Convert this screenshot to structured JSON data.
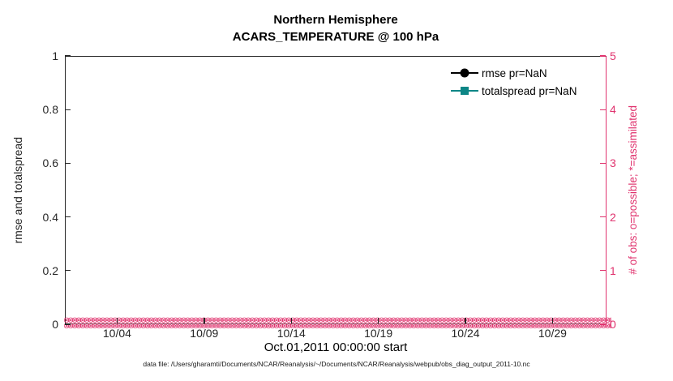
{
  "figure": {
    "title": "Northern Hemisphere",
    "subtitle": "ACARS_TEMPERATURE @ 100 hPa",
    "xlabel": "Oct.01,2011 00:00:00 start",
    "caption": "data file: /Users/gharamti/Documents/NCAR/Reanalysis/~/Documents/NCAR/Reanalysis/webpub/obs_diag_output_2011-10.nc"
  },
  "colors": {
    "obs_axis_pink": "#E0336E",
    "rmse_black": "#000000",
    "totalspread_teal": "#0D8686",
    "axis_ink": "#262626",
    "background": "#FFFFFF"
  },
  "left_axis": {
    "label": "rmse and totalspread",
    "ticks": [
      "0",
      "0.2",
      "0.4",
      "0.6",
      "0.8",
      "1"
    ],
    "range": [
      0,
      1
    ]
  },
  "right_axis": {
    "label": "# of obs: o=possible; *=assimilated",
    "ticks": [
      "0",
      "1",
      "2",
      "3",
      "4",
      "5"
    ],
    "range": [
      0,
      5
    ]
  },
  "x_axis": {
    "ticks": [
      "10/04",
      "10/09",
      "10/14",
      "10/19",
      "10/24",
      "10/29"
    ],
    "tick_days": [
      4,
      9,
      14,
      19,
      24,
      29
    ],
    "range_days": [
      1,
      32.1
    ]
  },
  "legend": [
    {
      "label": "rmse pr=NaN",
      "marker": "circle",
      "color": "#000000"
    },
    {
      "label": "totalspread pr=NaN",
      "marker": "square",
      "color": "#0D8686"
    }
  ],
  "chart_data": {
    "type": "line",
    "title": "Northern Hemisphere",
    "subtitle": "ACARS_TEMPERATURE @ 100 hPa",
    "xlabel": "Oct.01,2011 00:00:00 start",
    "ylabel_left": "rmse and totalspread",
    "ylabel_right": "# of obs: o=possible; *=assimilated",
    "x_ticks": [
      "10/04",
      "10/09",
      "10/14",
      "10/19",
      "10/24",
      "10/29"
    ],
    "x_range": "Oct 01 2011 00:00 to Nov 01 2011",
    "ylim_left": [
      0,
      1
    ],
    "ylim_right": [
      0,
      5
    ],
    "grid": false,
    "legend_position": "upper-right, no box",
    "series": [
      {
        "name": "rmse pr=NaN",
        "axis": "left",
        "style": "black line, filled circle marker",
        "values": "NaN — no curve drawn"
      },
      {
        "name": "totalspread pr=NaN",
        "axis": "left",
        "style": "teal line, filled square marker",
        "values": "NaN — no curve drawn"
      },
      {
        "name": "obs possible (o markers)",
        "axis": "right",
        "style": "pink open circles",
        "values": "0 at every ~6-hour bin from 10/01 through 11/01"
      },
      {
        "name": "obs assimilated (* markers)",
        "axis": "right",
        "style": "pink asterisks",
        "values": "0 at every ~6-hour bin from 10/01 through 11/01"
      }
    ],
    "annotations": [
      "dense pink o/* marker band along y=0 spanning full x-range"
    ]
  }
}
